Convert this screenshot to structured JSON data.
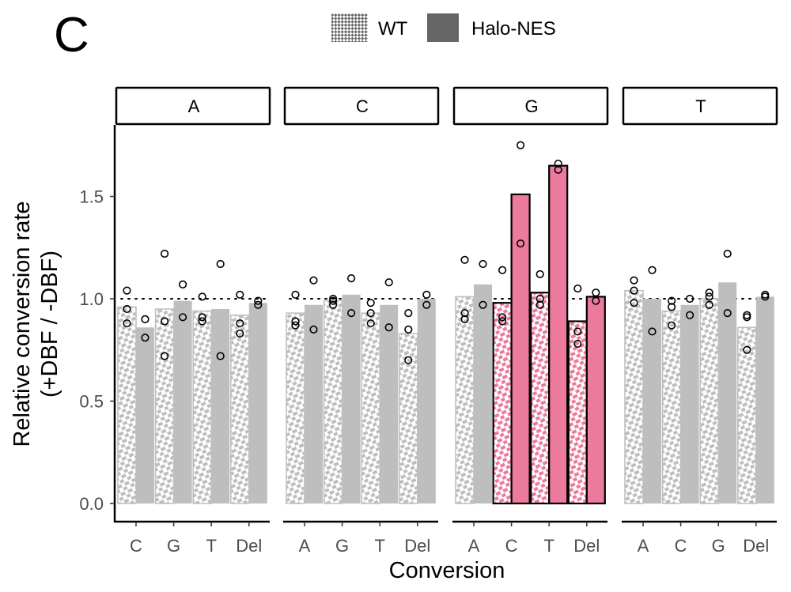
{
  "panel_letter": "C",
  "chart_data": {
    "type": "bar",
    "xlabel": "Conversion",
    "ylabel": [
      "Relative conversion rate",
      "(+DBF / -DBF)"
    ],
    "ylim": [
      0,
      1.85
    ],
    "yticks": [
      0.0,
      0.5,
      1.0,
      1.5
    ],
    "ytick_labels": [
      "0.0",
      "0.5",
      "1.0",
      "1.5"
    ],
    "reference_line": 1.0,
    "grid": false,
    "legend": {
      "placement": "top",
      "entries": [
        {
          "name": "WT",
          "style": "hatched"
        },
        {
          "name": "Halo-NES",
          "style": "solid"
        }
      ]
    },
    "colors": {
      "default": "#bebebe",
      "highlight": "#ec7a9c"
    },
    "panels": [
      {
        "facet": "A",
        "categories": [
          "C",
          "G",
          "T",
          "Del"
        ],
        "series": [
          {
            "name": "WT",
            "values": [
              0.96,
              0.95,
              0.94,
              0.92
            ],
            "points": [
              [
                1.04,
                0.95,
                0.88
              ],
              [
                1.22,
                0.89,
                0.72
              ],
              [
                1.01,
                0.91,
                0.89
              ],
              [
                1.02,
                0.88,
                0.83
              ]
            ]
          },
          {
            "name": "Halo-NES",
            "values": [
              0.86,
              0.99,
              0.95,
              0.98
            ],
            "points": [
              [
                0.9,
                0.81
              ],
              [
                1.07,
                0.91
              ],
              [
                1.17,
                0.72
              ],
              [
                0.99,
                0.97
              ]
            ]
          }
        ],
        "highlighted": [
          false,
          false,
          false,
          false
        ]
      },
      {
        "facet": "C",
        "categories": [
          "A",
          "G",
          "T",
          "Del"
        ],
        "series": [
          {
            "name": "WT",
            "values": [
              0.93,
              0.99,
              0.93,
              0.83
            ],
            "points": [
              [
                1.02,
                0.89,
                0.87
              ],
              [
                1.0,
                0.99,
                0.97
              ],
              [
                0.98,
                0.93,
                0.88
              ],
              [
                0.93,
                0.85,
                0.7
              ]
            ]
          },
          {
            "name": "Halo-NES",
            "values": [
              0.97,
              1.02,
              0.97,
              1.0
            ],
            "points": [
              [
                1.09,
                0.85
              ],
              [
                1.1,
                0.93
              ],
              [
                1.08,
                0.86
              ],
              [
                1.02,
                0.97
              ]
            ]
          }
        ],
        "highlighted": [
          false,
          false,
          false,
          false
        ]
      },
      {
        "facet": "G",
        "categories": [
          "A",
          "C",
          "T",
          "Del"
        ],
        "series": [
          {
            "name": "WT",
            "values": [
              1.01,
              0.98,
              1.03,
              0.89
            ],
            "points": [
              [
                1.19,
                0.93,
                0.9
              ],
              [
                1.14,
                0.91,
                0.89
              ],
              [
                1.12,
                1.0,
                0.97
              ],
              [
                1.05,
                0.84,
                0.78
              ]
            ]
          },
          {
            "name": "Halo-NES",
            "values": [
              1.07,
              1.51,
              1.65,
              1.01
            ],
            "points": [
              [
                1.17,
                0.97
              ],
              [
                1.75,
                1.27
              ],
              [
                1.66,
                1.63
              ],
              [
                1.03,
                0.99
              ]
            ]
          }
        ],
        "highlighted": [
          false,
          true,
          true,
          true
        ]
      },
      {
        "facet": "T",
        "categories": [
          "A",
          "C",
          "G",
          "Del"
        ],
        "series": [
          {
            "name": "WT",
            "values": [
              1.04,
              0.94,
              1.0,
              0.86
            ],
            "points": [
              [
                1.09,
                1.04,
                0.98
              ],
              [
                0.99,
                0.96,
                0.87
              ],
              [
                1.03,
                1.01,
                0.97
              ],
              [
                0.92,
                0.91,
                0.75
              ]
            ]
          },
          {
            "name": "Halo-NES",
            "values": [
              1.0,
              0.97,
              1.08,
              1.01
            ],
            "points": [
              [
                1.14,
                0.84
              ],
              [
                1.0,
                0.92
              ],
              [
                1.22,
                0.93
              ],
              [
                1.02,
                1.01
              ]
            ]
          }
        ],
        "highlighted": [
          false,
          false,
          false,
          false
        ]
      }
    ]
  }
}
